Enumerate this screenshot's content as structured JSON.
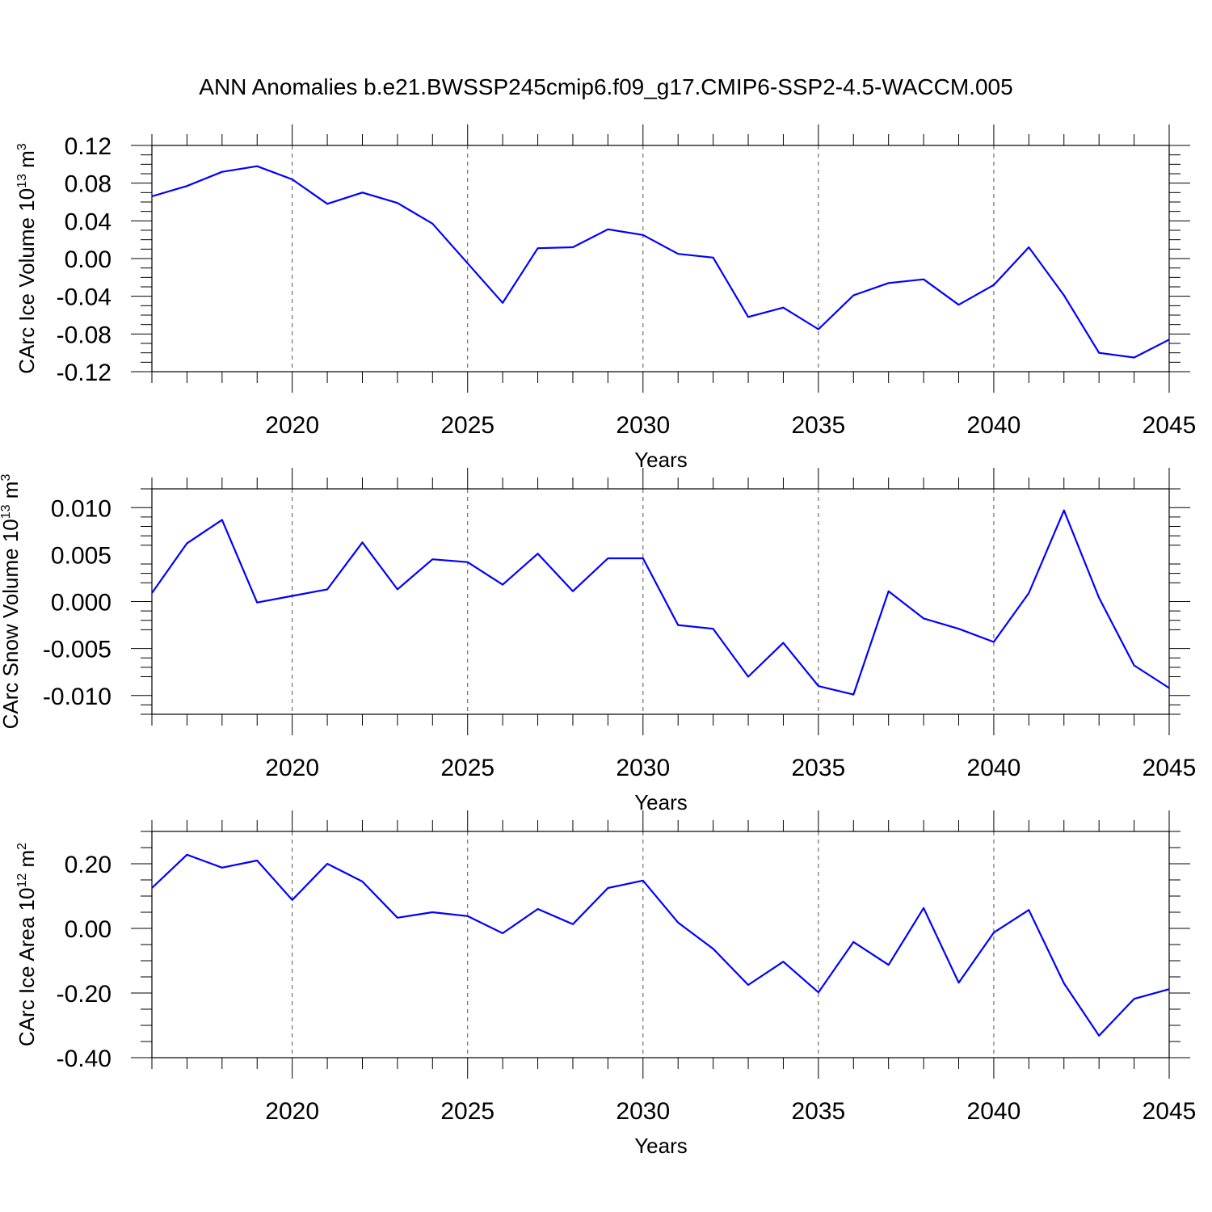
{
  "title": "ANN Anomalies b.e21.BWSSP245cmip6.f09_g17.CMIP6-SSP2-4.5-WACCM.005",
  "line_color": "#0000ff",
  "grid_color": "#555555",
  "chart_data": [
    {
      "type": "line",
      "xlabel": "Years",
      "ylabel": {
        "main": "CArc Ice Volume 10",
        "exp": "13",
        "unit": " m",
        "unit_exp": "3"
      },
      "xlim": [
        2016,
        2045
      ],
      "ylim": [
        -0.12,
        0.12
      ],
      "yticks": [
        -0.12,
        -0.08,
        -0.04,
        0.0,
        0.04,
        0.08,
        0.12
      ],
      "ytick_labels": [
        "-0.12",
        "-0.08",
        "-0.04",
        "0.00",
        "0.04",
        "0.08",
        "0.12"
      ],
      "xticks": [
        2020,
        2025,
        2030,
        2035,
        2040,
        2045
      ],
      "xtick_labels": [
        "2020",
        "2025",
        "2030",
        "2035",
        "2040",
        "2045"
      ],
      "grid": "vertical dashed at major x ticks",
      "x": [
        2016,
        2017,
        2018,
        2019,
        2020,
        2021,
        2022,
        2023,
        2024,
        2025,
        2026,
        2027,
        2028,
        2029,
        2030,
        2031,
        2032,
        2033,
        2034,
        2035,
        2036,
        2037,
        2038,
        2039,
        2040,
        2041,
        2042,
        2043,
        2044,
        2045
      ],
      "values": [
        0.066,
        0.077,
        0.092,
        0.098,
        0.084,
        0.058,
        0.07,
        0.059,
        0.037,
        -0.005,
        -0.047,
        0.011,
        0.012,
        0.031,
        0.025,
        0.005,
        0.001,
        -0.062,
        -0.052,
        -0.075,
        -0.039,
        -0.026,
        -0.022,
        -0.049,
        -0.028,
        0.012,
        -0.039,
        -0.1,
        -0.105,
        -0.086
      ]
    },
    {
      "type": "line",
      "xlabel": "Years",
      "ylabel": {
        "main": "CArc Snow Volume 10",
        "exp": "13",
        "unit": " m",
        "unit_exp": "3"
      },
      "xlim": [
        2016,
        2045
      ],
      "ylim": [
        -0.012,
        0.012
      ],
      "yticks": [
        -0.01,
        -0.005,
        0.0,
        0.005,
        0.01
      ],
      "ytick_labels": [
        "-0.010",
        "-0.005",
        "0.000",
        "0.005",
        "0.010"
      ],
      "xticks": [
        2020,
        2025,
        2030,
        2035,
        2040,
        2045
      ],
      "xtick_labels": [
        "2020",
        "2025",
        "2030",
        "2035",
        "2040",
        "2045"
      ],
      "grid": "vertical dashed at major x ticks",
      "x": [
        2016,
        2017,
        2018,
        2019,
        2020,
        2021,
        2022,
        2023,
        2024,
        2025,
        2026,
        2027,
        2028,
        2029,
        2030,
        2031,
        2032,
        2033,
        2034,
        2035,
        2036,
        2037,
        2038,
        2039,
        2040,
        2041,
        2042,
        2043,
        2044,
        2045
      ],
      "values": [
        0.0009,
        0.0062,
        0.0087,
        -0.0001,
        0.0006,
        0.0013,
        0.0063,
        0.0013,
        0.0045,
        0.0042,
        0.0018,
        0.0051,
        0.0011,
        0.0046,
        0.0046,
        -0.0025,
        -0.0029,
        -0.008,
        -0.0044,
        -0.009,
        -0.0099,
        0.0011,
        -0.0018,
        -0.0029,
        -0.0043,
        0.0009,
        0.0097,
        0.0004,
        -0.0068,
        -0.0092
      ]
    },
    {
      "type": "line",
      "xlabel": "Years",
      "ylabel": {
        "main": "CArc Ice Area 10",
        "exp": "12",
        "unit": " m",
        "unit_exp": "2"
      },
      "xlim": [
        2016,
        2045
      ],
      "ylim": [
        -0.4,
        0.3
      ],
      "yticks": [
        -0.4,
        -0.2,
        0.0,
        0.2
      ],
      "ytick_labels": [
        "-0.40",
        "-0.20",
        "0.00",
        "0.20"
      ],
      "xticks": [
        2020,
        2025,
        2030,
        2035,
        2040,
        2045
      ],
      "xtick_labels": [
        "2020",
        "2025",
        "2030",
        "2035",
        "2040",
        "2045"
      ],
      "grid": "vertical dashed at major x ticks",
      "x": [
        2016,
        2017,
        2018,
        2019,
        2020,
        2021,
        2022,
        2023,
        2024,
        2025,
        2026,
        2027,
        2028,
        2029,
        2030,
        2031,
        2032,
        2033,
        2034,
        2035,
        2036,
        2037,
        2038,
        2039,
        2040,
        2041,
        2042,
        2043,
        2044,
        2045
      ],
      "values": [
        0.125,
        0.228,
        0.188,
        0.21,
        0.088,
        0.2,
        0.145,
        0.033,
        0.05,
        0.038,
        -0.015,
        0.06,
        0.013,
        0.125,
        0.148,
        0.018,
        -0.063,
        -0.175,
        -0.103,
        -0.198,
        -0.042,
        -0.113,
        0.063,
        -0.168,
        -0.013,
        0.057,
        -0.17,
        -0.332,
        -0.218,
        -0.188
      ]
    }
  ]
}
